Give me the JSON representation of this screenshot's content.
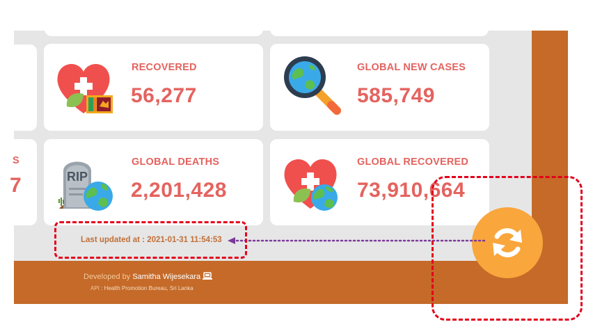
{
  "stats": {
    "partial_label": "S",
    "partial_value": "7",
    "recovered": {
      "label": "RECOVERED",
      "value": "56,277",
      "icon": "heart-flag-icon"
    },
    "global_new_cases": {
      "label": "GLOBAL NEW CASES",
      "value": "585,749",
      "icon": "magnifier-globe-icon"
    },
    "global_deaths": {
      "label": "GLOBAL DEATHS",
      "value": "2,201,428",
      "icon": "tombstone-globe-icon"
    },
    "global_recovered": {
      "label": "GLOBAL RECOVERED",
      "value": "73,910,664",
      "icon": "heart-globe-icon"
    }
  },
  "tombstone_text": "RIP",
  "last_updated": "Last updated at : 2021-01-31 11:54:53",
  "footer": {
    "developed_prefix": "Developed by",
    "developer_name": "Samitha Wijesekara",
    "laptop_icon": "laptop-icon",
    "api_key": "API",
    "api_value": " : Health Promotion Bureau, Sri Lanka"
  },
  "refresh_icon": "refresh-icon",
  "colors": {
    "accent": "#e4635f",
    "footer_bg": "#c56a29",
    "refresh_bg": "#f9a63c",
    "annotation": "#e3001a",
    "arrow": "#7a3a9b"
  }
}
